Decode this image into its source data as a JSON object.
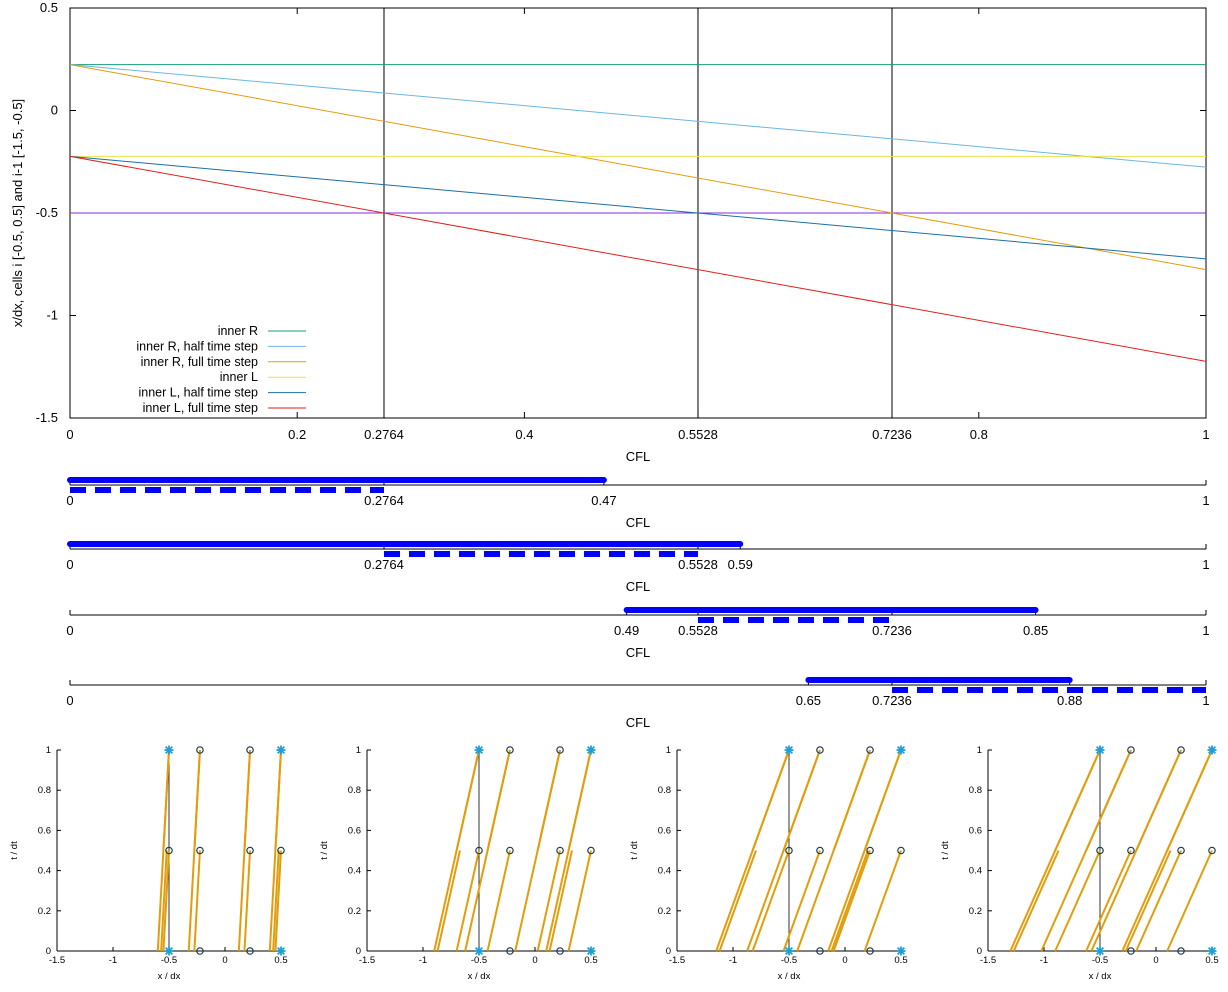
{
  "colors": {
    "inner_R": "#1a9c7a",
    "inner_R_half": "#6cb7e4",
    "inner_R_full": "#e39d0c",
    "inner_L": "#efe04a",
    "inner_L_half": "#1b6fa8",
    "inner_L_full": "#e0201b",
    "ref_line": "#8a2be2",
    "interval_bar": "#0000ff",
    "characteristic": "#e39d0c",
    "marker": "#1f9fd4",
    "circle": "#1b3a57"
  },
  "chart_data": [
    {
      "type": "line",
      "title": "",
      "xlabel": "CFL",
      "ylabel": "x/dx, cells i [-0.5, 0.5] and i-1 [-1.5, -0.5]",
      "xlim": [
        0,
        1
      ],
      "ylim": [
        -1.5,
        0.5
      ],
      "xticks": [
        "0",
        "0.2",
        "0.2764",
        "0.4",
        "0.5528",
        "0.7236",
        "0.8",
        "1"
      ],
      "yticks": [
        "-1.5",
        "-1",
        "-0.5",
        "0",
        "0.5"
      ],
      "vlines": [
        0.2764,
        0.5528,
        0.7236
      ],
      "hline": -0.5,
      "legend_position": "bottom-left",
      "series": [
        {
          "name": "inner R",
          "color_key": "inner_R",
          "x": [
            0,
            1
          ],
          "y": [
            0.2236,
            0.2236
          ]
        },
        {
          "name": "inner R, half time step",
          "color_key": "inner_R_half",
          "x": [
            0,
            1
          ],
          "y": [
            0.2236,
            -0.2764
          ]
        },
        {
          "name": "inner R, full time step",
          "color_key": "inner_R_full",
          "x": [
            0,
            1
          ],
          "y": [
            0.2236,
            -0.7764
          ]
        },
        {
          "name": "inner L",
          "color_key": "inner_L",
          "x": [
            0,
            1
          ],
          "y": [
            -0.2236,
            -0.2236
          ]
        },
        {
          "name": "inner L, half time step",
          "color_key": "inner_L_half",
          "x": [
            0,
            1
          ],
          "y": [
            -0.2236,
            -0.7236
          ]
        },
        {
          "name": "inner L, full time step",
          "color_key": "inner_L_full",
          "x": [
            0,
            1
          ],
          "y": [
            -0.2236,
            -1.2236
          ]
        }
      ]
    },
    {
      "type": "interval",
      "xlabel": "CFL",
      "xticks": [
        "0",
        "0.2764",
        "0.47",
        "1"
      ],
      "solid": [
        0,
        0.47
      ],
      "dashed": [
        0,
        0.2764
      ]
    },
    {
      "type": "interval",
      "xlabel": "CFL",
      "xticks": [
        "0",
        "0.2764",
        "0.5528",
        "0.59",
        "1"
      ],
      "solid": [
        0,
        0.59
      ],
      "dashed": [
        0.2764,
        0.5528
      ]
    },
    {
      "type": "interval",
      "xlabel": "CFL",
      "xticks": [
        "0",
        "0.49",
        "0.5528",
        "0.7236",
        "0.85",
        "1"
      ],
      "solid": [
        0.49,
        0.85
      ],
      "dashed": [
        0.5528,
        0.7236
      ]
    },
    {
      "type": "interval",
      "xlabel": "CFL",
      "xticks": [
        "0",
        "0.65",
        "0.7236",
        "0.88",
        "1"
      ],
      "solid": [
        0.65,
        0.88
      ],
      "dashed": [
        0.7236,
        1
      ]
    },
    {
      "type": "characteristics",
      "xlabel": "x / dx",
      "ylabel": "t / dt",
      "xticks": [
        "-1.5",
        "-1",
        "-0.5",
        "0",
        "0.5"
      ],
      "yticks": [
        "0",
        "0.2",
        "0.4",
        "0.6",
        "0.8",
        "1"
      ],
      "cfl": 0.1
    },
    {
      "type": "characteristics",
      "xlabel": "x / dx",
      "ylabel": "t / dt",
      "xticks": [
        "-1.5",
        "-1",
        "-0.5",
        "0",
        "0.5"
      ],
      "yticks": [
        "0",
        "0.2",
        "0.4",
        "0.6",
        "0.8",
        "1"
      ],
      "cfl": 0.4
    },
    {
      "type": "characteristics",
      "xlabel": "x / dx",
      "ylabel": "t / dt",
      "xticks": [
        "-1.5",
        "-1",
        "-0.5",
        "0",
        "0.5"
      ],
      "yticks": [
        "0",
        "0.2",
        "0.4",
        "0.6",
        "0.8",
        "1"
      ],
      "cfl": 0.65
    },
    {
      "type": "characteristics",
      "xlabel": "x / dx",
      "ylabel": "t / dt",
      "xticks": [
        "-1.5",
        "-1",
        "-0.5",
        "0",
        "0.5"
      ],
      "yticks": [
        "0",
        "0.2",
        "0.4",
        "0.6",
        "0.8",
        "1"
      ],
      "cfl": 0.8
    }
  ]
}
